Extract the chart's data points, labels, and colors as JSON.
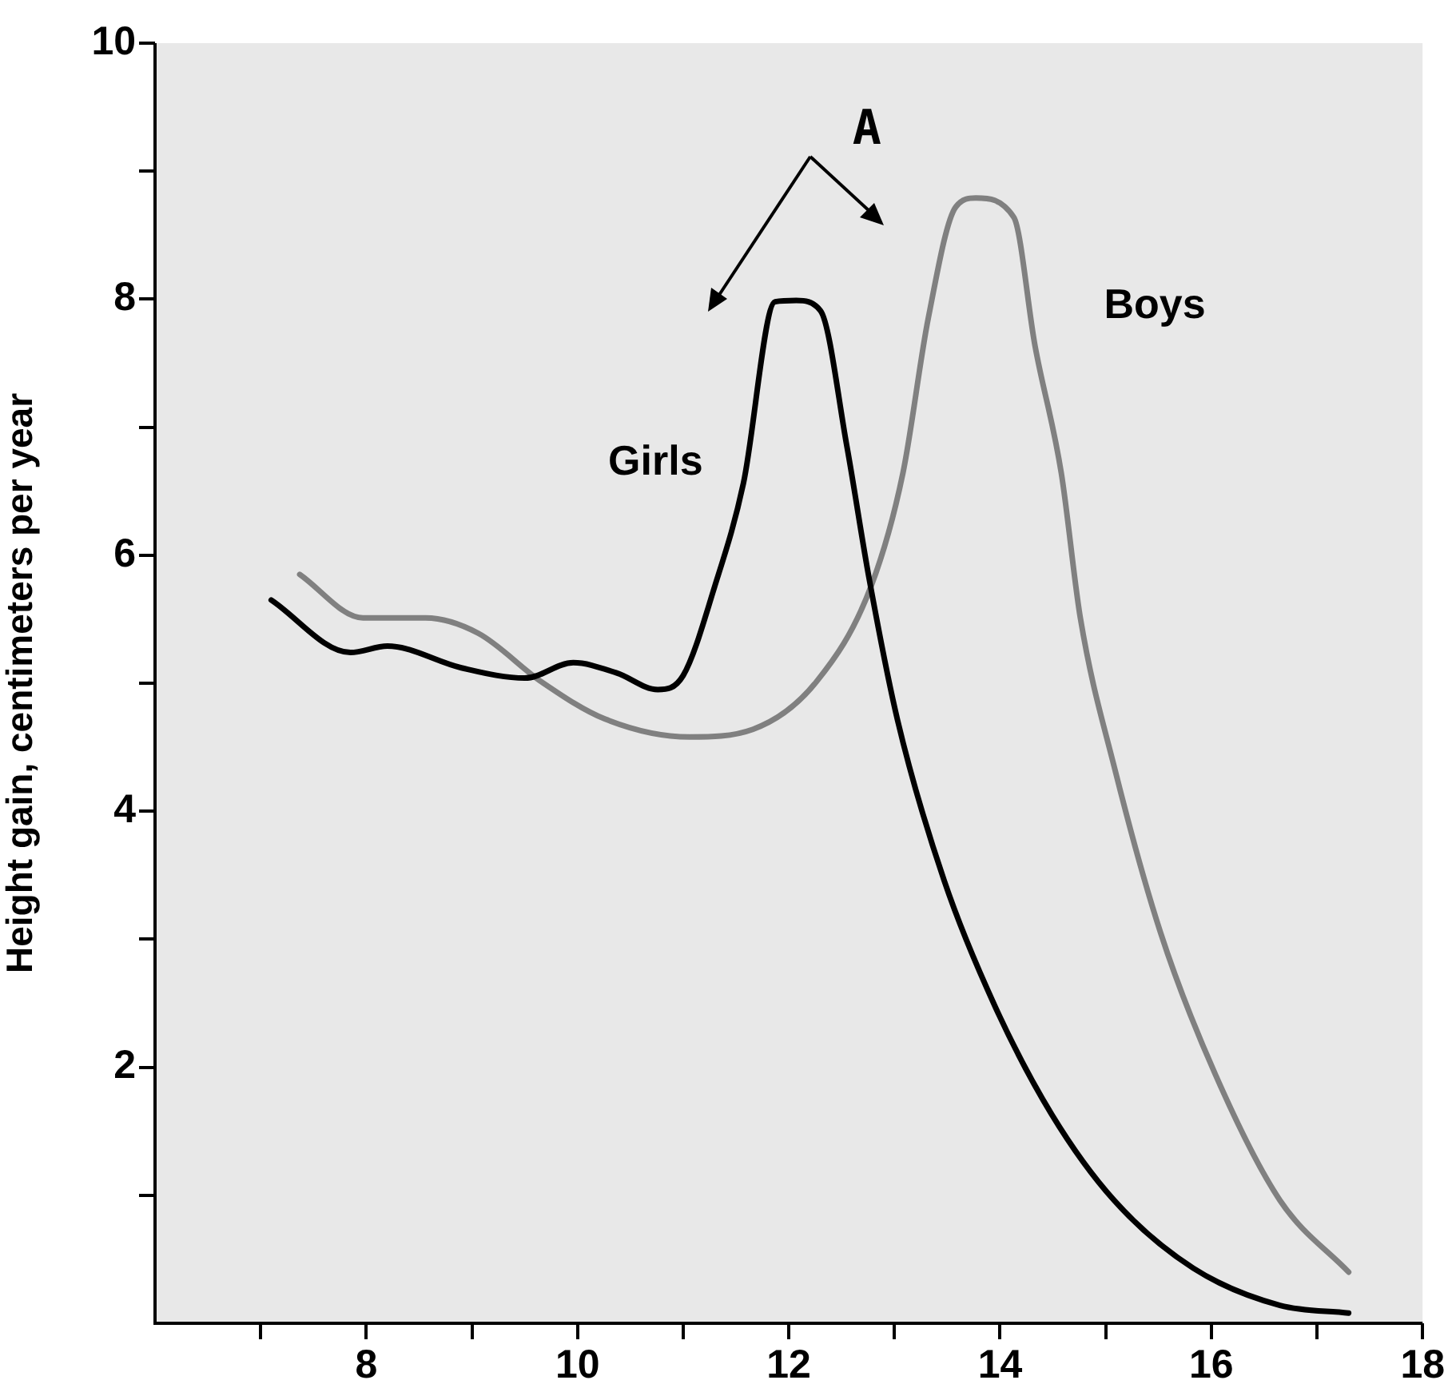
{
  "chart_data": {
    "type": "line",
    "ylabel": "Height gain, centimeters per year",
    "xlim": [
      6,
      18
    ],
    "ylim": [
      0,
      10
    ],
    "xticks": [
      {
        "value": 7,
        "label": null
      },
      8,
      {
        "value": 9,
        "label": null
      },
      10,
      {
        "value": 11,
        "label": null
      },
      12,
      {
        "value": 13,
        "label": null
      },
      14,
      {
        "value": 15,
        "label": null
      },
      16,
      {
        "value": 17,
        "label": null
      },
      18
    ],
    "yticks": [
      {
        "value": 1,
        "label": null
      },
      2,
      {
        "value": 3,
        "label": null
      },
      4,
      {
        "value": 5,
        "label": null
      },
      6,
      {
        "value": 7,
        "label": null
      },
      8,
      {
        "value": 9,
        "label": null
      },
      10
    ],
    "marker": "none",
    "line_style": "solid",
    "annotations": [
      "A"
    ],
    "series": [
      {
        "name": "Girls",
        "color": "#000000",
        "x": [
          7.1,
          7.85,
          8.2,
          8.9,
          9.5,
          9.96,
          10.37,
          10.76,
          11.0,
          11.3,
          11.57,
          11.87,
          12.07,
          12.3,
          12.55,
          12.76,
          13.03,
          13.47,
          13.95,
          14.49,
          15.08,
          15.83,
          16.65,
          17.3
        ],
        "values": [
          5.65,
          5.24,
          5.29,
          5.12,
          5.04,
          5.16,
          5.08,
          4.95,
          5.06,
          5.76,
          6.56,
          7.98,
          7.99,
          7.91,
          6.85,
          5.82,
          4.71,
          3.46,
          2.48,
          1.63,
          0.96,
          0.43,
          0.14,
          0.08
        ]
      },
      {
        "name": "Boys",
        "color": "#808080",
        "x": [
          7.37,
          7.97,
          8.56,
          9.06,
          9.66,
          10.26,
          11.06,
          11.66,
          12.26,
          12.78,
          13.08,
          13.32,
          13.58,
          13.77,
          14.13,
          14.33,
          14.58,
          14.76,
          15.08,
          15.52,
          16.04,
          16.65,
          17.3
        ],
        "values": [
          5.85,
          5.51,
          5.51,
          5.39,
          5.01,
          4.72,
          4.58,
          4.64,
          5.01,
          5.76,
          6.64,
          7.85,
          8.72,
          8.79,
          8.64,
          7.64,
          6.64,
          5.51,
          4.35,
          3.05,
          1.94,
          0.96,
          0.4
        ]
      }
    ]
  }
}
